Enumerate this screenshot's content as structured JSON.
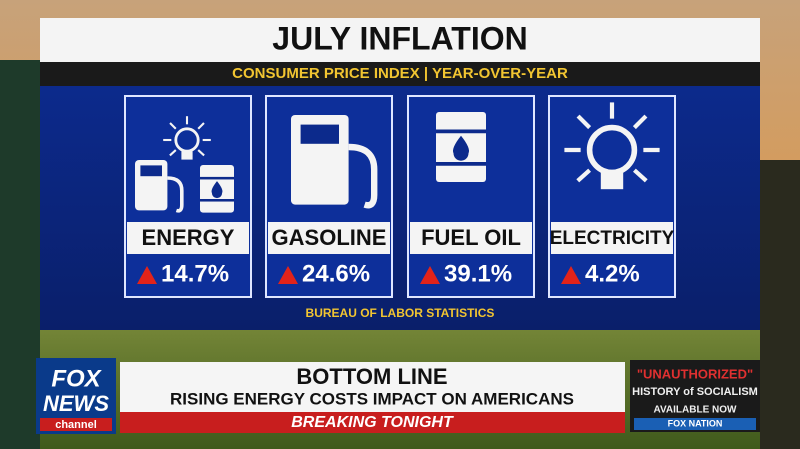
{
  "graphic": {
    "title": "JULY INFLATION",
    "subtitle": "CONSUMER PRICE INDEX | YEAR-OVER-YEAR",
    "source": "BUREAU OF LABOR STATISTICS",
    "cards": [
      {
        "label": "ENERGY",
        "change": "14.7%"
      },
      {
        "label": "GASOLINE",
        "change": "24.6%"
      },
      {
        "label": "FUEL OIL",
        "change": "39.1%"
      },
      {
        "label": "ELECTRICITY",
        "change": "4.2%"
      }
    ]
  },
  "lower_third": {
    "network": [
      "FOX",
      "NEWS",
      "channel"
    ],
    "headline": "BOTTOM LINE",
    "subheadline": "RISING ENERGY COSTS IMPACT ON AMERICANS",
    "banner": "BREAKING TONIGHT",
    "promo": {
      "line1": "\"UNAUTHORIZED\"",
      "line2": "HISTORY of SOCIALISM",
      "line3": "AVAILABLE NOW",
      "brand": "FOX NATION"
    }
  }
}
